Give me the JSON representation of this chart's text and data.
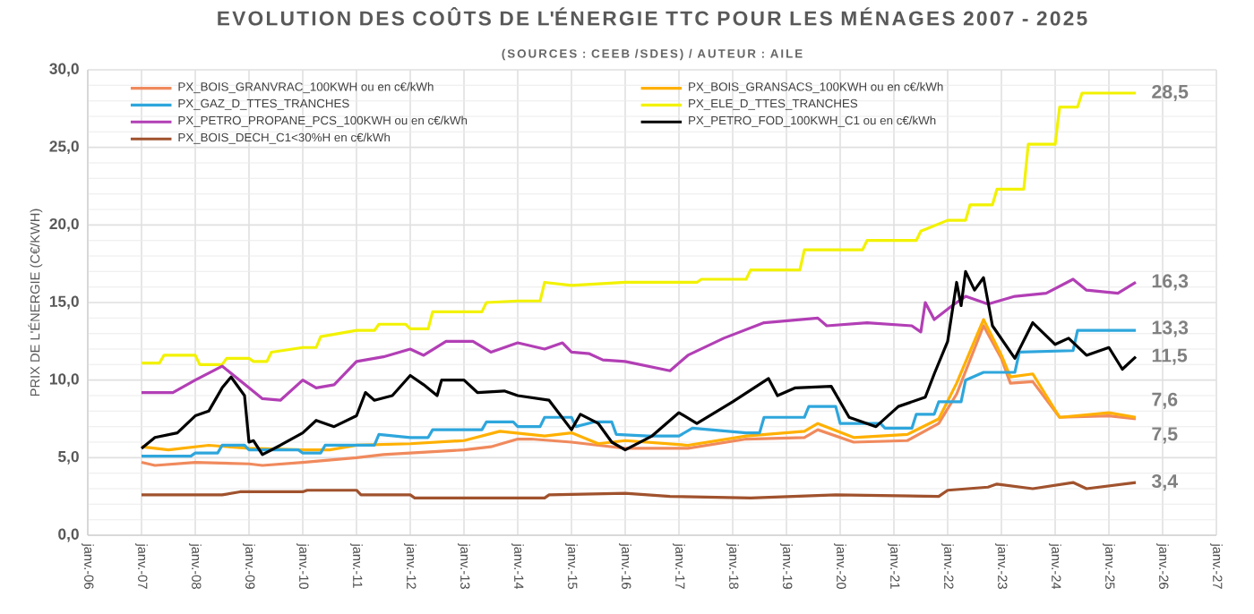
{
  "chart_data": {
    "type": "line",
    "title": "EVOLUTION DES COÛTS DE L'ÉNERGIE TTC POUR LES MÉNAGES 2007 - 2025",
    "subtitle": "(SOURCES : CEEB /SDES) / AUTEUR : AILE",
    "ylabel": "PRIX DE L'ÉNERGIE (C€/KWH)",
    "xlim": [
      "2006-01",
      "2027-01"
    ],
    "xticks": [
      {
        "value": "2006-01",
        "label": "janv.-06"
      },
      {
        "value": "2007-01",
        "label": "janv.-07"
      },
      {
        "value": "2008-01",
        "label": "janv.-08"
      },
      {
        "value": "2009-01",
        "label": "janv.-09"
      },
      {
        "value": "2010-01",
        "label": "janv.-10"
      },
      {
        "value": "2011-01",
        "label": "janv.-11"
      },
      {
        "value": "2012-01",
        "label": "janv.-12"
      },
      {
        "value": "2013-01",
        "label": "janv.-13"
      },
      {
        "value": "2014-01",
        "label": "janv.-14"
      },
      {
        "value": "2015-01",
        "label": "janv.-15"
      },
      {
        "value": "2016-01",
        "label": "janv.-16"
      },
      {
        "value": "2017-01",
        "label": "janv.-17"
      },
      {
        "value": "2018-01",
        "label": "janv.-18"
      },
      {
        "value": "2019-01",
        "label": "janv.-19"
      },
      {
        "value": "2020-01",
        "label": "janv.-20"
      },
      {
        "value": "2021-01",
        "label": "janv.-21"
      },
      {
        "value": "2022-01",
        "label": "janv.-22"
      },
      {
        "value": "2023-01",
        "label": "janv.-23"
      },
      {
        "value": "2024-01",
        "label": "janv.-24"
      },
      {
        "value": "2025-01",
        "label": "janv.-25"
      },
      {
        "value": "2026-01",
        "label": "janv.-26"
      },
      {
        "value": "2027-01",
        "label": "janv.-27"
      }
    ],
    "ylim": [
      0,
      30
    ],
    "yticks": [
      {
        "value": 0,
        "label": "0,0"
      },
      {
        "value": 5,
        "label": "5,0"
      },
      {
        "value": 10,
        "label": "10,0"
      },
      {
        "value": 15,
        "label": "15,0"
      },
      {
        "value": 20,
        "label": "20,0"
      },
      {
        "value": 25,
        "label": "25,0"
      },
      {
        "value": 30,
        "label": "30,0"
      }
    ],
    "grid": true,
    "legend": "top left",
    "series": [
      {
        "name": "PX_BOIS_GRANVRAC_100KWH ou en c€/kWh",
        "color": "#f08a5d",
        "x": [
          "2007-01",
          "2007-04",
          "2008-01",
          "2009-01",
          "2009-04",
          "2010-01",
          "2011-01",
          "2011-07",
          "2012-01",
          "2013-01",
          "2013-07",
          "2014-01",
          "2014-04",
          "2015-01",
          "2015-07",
          "2016-01",
          "2017-03",
          "2018-04",
          "2019-05",
          "2019-08",
          "2020-04",
          "2021-04",
          "2021-11",
          "2022-03",
          "2022-09",
          "2023-01",
          "2023-03",
          "2023-08",
          "2024-02",
          "2025-01",
          "2025-07"
        ],
        "values": [
          4.7,
          4.5,
          4.7,
          4.6,
          4.5,
          4.7,
          5.0,
          5.2,
          5.3,
          5.5,
          5.7,
          6.2,
          6.2,
          6.0,
          5.8,
          5.6,
          5.6,
          6.2,
          6.3,
          6.8,
          6.0,
          6.1,
          7.2,
          9.1,
          13.5,
          11.4,
          9.8,
          9.9,
          7.6,
          7.7,
          7.5
        ]
      },
      {
        "name": "PX_BOIS_GRANSACS_100KWH ou en c€/kWh",
        "color": "#ffb000",
        "x": [
          "2007-01",
          "2007-07",
          "2008-04",
          "2009-01",
          "2010-01",
          "2010-07",
          "2011-01",
          "2012-01",
          "2013-01",
          "2013-09",
          "2014-07",
          "2015-01",
          "2015-07",
          "2016-01",
          "2017-03",
          "2018-04",
          "2019-05",
          "2019-08",
          "2020-04",
          "2021-04",
          "2021-11",
          "2022-03",
          "2022-09",
          "2023-01",
          "2023-03",
          "2023-08",
          "2024-02",
          "2025-01",
          "2025-07"
        ],
        "values": [
          5.7,
          5.5,
          5.8,
          5.6,
          5.5,
          5.5,
          5.8,
          5.9,
          6.1,
          6.7,
          6.4,
          6.6,
          5.9,
          6.1,
          5.8,
          6.4,
          6.7,
          7.2,
          6.3,
          6.5,
          7.5,
          9.8,
          13.9,
          11.6,
          10.2,
          10.4,
          7.6,
          7.9,
          7.6
        ]
      },
      {
        "name": "PX_GAZ_D_TTES_TRANCHES",
        "color": "#2ea6dc",
        "x": [
          "2007-01",
          "2007-12",
          "2008-01",
          "2008-06",
          "2008-07",
          "2008-12",
          "2009-01",
          "2009-12",
          "2010-01",
          "2010-05",
          "2010-06",
          "2011-05",
          "2011-06",
          "2012-01",
          "2012-05",
          "2012-06",
          "2013-05",
          "2013-06",
          "2013-12",
          "2014-01",
          "2014-06",
          "2014-07",
          "2015-01",
          "2015-02",
          "2015-06",
          "2015-10",
          "2015-11",
          "2016-06",
          "2017-01",
          "2017-04",
          "2018-04",
          "2018-07",
          "2018-08",
          "2019-05",
          "2019-06",
          "2019-12",
          "2020-01",
          "2020-10",
          "2020-11",
          "2021-05",
          "2021-06",
          "2021-10",
          "2021-11",
          "2022-04",
          "2022-05",
          "2022-09",
          "2023-04",
          "2023-05",
          "2024-05",
          "2024-06",
          "2025-07"
        ],
        "values": [
          5.1,
          5.1,
          5.3,
          5.3,
          5.8,
          5.8,
          5.5,
          5.5,
          5.3,
          5.3,
          5.8,
          5.8,
          6.5,
          6.3,
          6.3,
          6.8,
          6.8,
          7.3,
          7.3,
          7.0,
          7.0,
          7.6,
          7.6,
          7.0,
          7.3,
          7.3,
          6.5,
          6.4,
          6.4,
          6.9,
          6.6,
          6.6,
          7.6,
          7.6,
          8.3,
          8.3,
          7.2,
          7.2,
          6.9,
          6.9,
          7.8,
          7.8,
          8.6,
          8.6,
          10.0,
          10.5,
          10.5,
          11.8,
          11.9,
          13.2,
          13.2
        ]
      },
      {
        "name": "PX_ELE_D_TTES_TRANCHES",
        "color": "#f2f200",
        "x": [
          "2007-01",
          "2007-05",
          "2007-06",
          "2008-01",
          "2008-02",
          "2008-07",
          "2008-08",
          "2009-01",
          "2009-02",
          "2009-05",
          "2009-06",
          "2010-01",
          "2010-04",
          "2010-05",
          "2011-01",
          "2011-05",
          "2011-06",
          "2011-12",
          "2012-01",
          "2012-05",
          "2012-06",
          "2013-05",
          "2013-06",
          "2014-01",
          "2014-06",
          "2014-07",
          "2015-01",
          "2016-01",
          "2017-05",
          "2017-06",
          "2018-04",
          "2018-05",
          "2019-04",
          "2019-05",
          "2020-06",
          "2020-07",
          "2021-06",
          "2021-07",
          "2022-01",
          "2022-05",
          "2022-06",
          "2022-11",
          "2022-12",
          "2023-06",
          "2023-07",
          "2024-01",
          "2024-02",
          "2024-06",
          "2024-07",
          "2025-07"
        ],
        "values": [
          11.1,
          11.1,
          11.6,
          11.6,
          11.0,
          11.0,
          11.4,
          11.4,
          11.2,
          11.2,
          11.8,
          12.1,
          12.1,
          12.8,
          13.2,
          13.2,
          13.6,
          13.6,
          13.3,
          13.3,
          14.4,
          14.4,
          15.0,
          15.1,
          15.1,
          16.3,
          16.1,
          16.3,
          16.3,
          16.5,
          16.5,
          17.1,
          17.1,
          18.4,
          18.4,
          19.0,
          19.0,
          19.6,
          20.3,
          20.3,
          21.3,
          21.3,
          22.3,
          22.3,
          25.2,
          25.2,
          27.6,
          27.6,
          28.5,
          28.5
        ]
      },
      {
        "name": "PX_PETRO_PROPANE_PCS_100KWH ou en c€/kWh",
        "color": "#b23fb5",
        "x": [
          "2007-01",
          "2007-08",
          "2008-01",
          "2008-07",
          "2009-01",
          "2009-04",
          "2009-08",
          "2010-01",
          "2010-04",
          "2010-08",
          "2011-01",
          "2011-07",
          "2012-01",
          "2012-04",
          "2012-09",
          "2013-03",
          "2013-07",
          "2014-01",
          "2014-07",
          "2014-11",
          "2015-01",
          "2015-05",
          "2015-08",
          "2016-01",
          "2016-11",
          "2017-03",
          "2017-11",
          "2018-08",
          "2019-08",
          "2019-10",
          "2020-07",
          "2021-05",
          "2021-07",
          "2021-08",
          "2021-10",
          "2022-02",
          "2022-05",
          "2022-10",
          "2023-04",
          "2023-11",
          "2024-05",
          "2024-08",
          "2025-03",
          "2025-07"
        ],
        "values": [
          9.2,
          9.2,
          10.0,
          10.9,
          9.5,
          8.8,
          8.7,
          10.0,
          9.5,
          9.7,
          11.2,
          11.5,
          12.0,
          11.6,
          12.5,
          12.5,
          11.8,
          12.4,
          12.0,
          12.4,
          11.8,
          11.7,
          11.3,
          11.2,
          10.6,
          11.6,
          12.7,
          13.7,
          14.0,
          13.5,
          13.7,
          13.5,
          13.1,
          15.0,
          13.9,
          14.8,
          15.4,
          14.9,
          15.4,
          15.6,
          16.5,
          15.8,
          15.6,
          16.3
        ]
      },
      {
        "name": "PX_PETRO_FOD_100KWH_C1 ou en c€/kWh",
        "color": "#000000",
        "x": [
          "2007-01",
          "2007-04",
          "2007-09",
          "2008-01",
          "2008-04",
          "2008-07",
          "2008-09",
          "2008-12",
          "2009-01",
          "2009-02",
          "2009-04",
          "2009-08",
          "2010-01",
          "2010-04",
          "2010-08",
          "2011-01",
          "2011-03",
          "2011-05",
          "2011-09",
          "2012-01",
          "2012-04",
          "2012-07",
          "2012-08",
          "2013-01",
          "2013-04",
          "2013-10",
          "2014-01",
          "2014-08",
          "2015-01",
          "2015-03",
          "2015-07",
          "2015-10",
          "2016-01",
          "2016-07",
          "2017-01",
          "2017-05",
          "2018-01",
          "2018-09",
          "2018-11",
          "2019-03",
          "2019-11",
          "2020-03",
          "2020-09",
          "2021-02",
          "2021-08",
          "2021-10",
          "2022-01",
          "2022-03",
          "2022-04",
          "2022-05",
          "2022-07",
          "2022-09",
          "2022-11",
          "2023-04",
          "2023-08",
          "2024-01",
          "2024-04",
          "2024-08",
          "2025-01",
          "2025-04",
          "2025-07"
        ],
        "values": [
          5.6,
          6.3,
          6.6,
          7.7,
          8.0,
          9.5,
          10.2,
          9.0,
          6.0,
          6.1,
          5.2,
          5.8,
          6.6,
          7.4,
          7.0,
          7.7,
          9.2,
          8.7,
          9.0,
          10.3,
          9.7,
          9.0,
          10.0,
          10.0,
          9.2,
          9.3,
          9.0,
          8.7,
          6.8,
          7.8,
          7.2,
          6.0,
          5.5,
          6.4,
          7.9,
          7.2,
          8.6,
          10.1,
          9.0,
          9.5,
          9.6,
          7.6,
          7.0,
          8.3,
          8.9,
          10.4,
          12.5,
          16.3,
          14.8,
          17.0,
          15.8,
          16.6,
          13.5,
          11.4,
          13.7,
          12.3,
          12.7,
          11.6,
          12.1,
          10.7,
          11.5
        ]
      },
      {
        "name": "PX_BOIS_DECH_C1<30%H en c€/kWh",
        "color": "#a0522d",
        "x": [
          "2007-01",
          "2008-07",
          "2008-11",
          "2010-01",
          "2010-02",
          "2011-01",
          "2011-02",
          "2012-01",
          "2012-02",
          "2014-07",
          "2014-08",
          "2016-01",
          "2016-11",
          "2018-05",
          "2019-12",
          "2021-11",
          "2022-01",
          "2022-10",
          "2022-12",
          "2023-08",
          "2024-05",
          "2024-08",
          "2025-07"
        ],
        "values": [
          2.6,
          2.6,
          2.8,
          2.8,
          2.9,
          2.9,
          2.6,
          2.6,
          2.4,
          2.4,
          2.6,
          2.7,
          2.5,
          2.4,
          2.6,
          2.5,
          2.9,
          3.1,
          3.3,
          3.0,
          3.4,
          3.0,
          3.4
        ]
      }
    ],
    "annotations": [
      {
        "text": "28,5",
        "x": "2025-07",
        "y": 28.5
      },
      {
        "text": "16,3",
        "x": "2025-07",
        "y": 16.3
      },
      {
        "text": "13,3",
        "x": "2025-07",
        "y": 13.3
      },
      {
        "text": "11,5",
        "x": "2025-07",
        "y": 11.5
      },
      {
        "text": "7,6",
        "x": "2025-07",
        "y": 7.6
      },
      {
        "text": "7,5",
        "x": "2025-07",
        "y": 7.5
      },
      {
        "text": "3,4",
        "x": "2025-07",
        "y": 3.4
      }
    ]
  }
}
